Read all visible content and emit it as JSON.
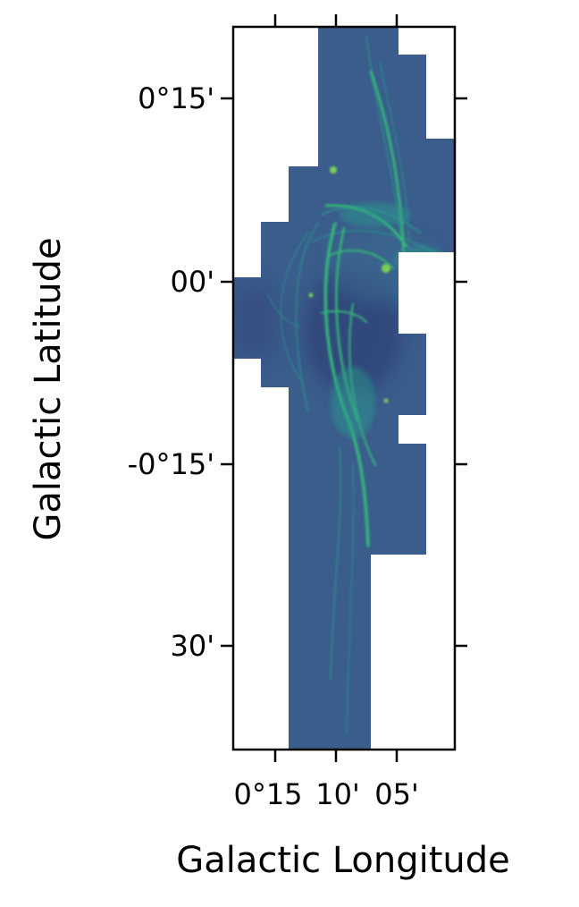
{
  "axes": {
    "xlabel": "Galactic Longitude",
    "ylabel": "Galactic Latitude",
    "x_ticks": [
      "0°15",
      "10'",
      "05'"
    ],
    "y_ticks": [
      "0°15'",
      "00'",
      "-0°15'",
      "30'"
    ]
  },
  "image": {
    "colormap": "viridis",
    "colors": {
      "background": "#3a5d8c",
      "bright_filament": "#35b779",
      "faint_filament": "#2a9d8f",
      "hot_spot": "#7ad151"
    }
  }
}
